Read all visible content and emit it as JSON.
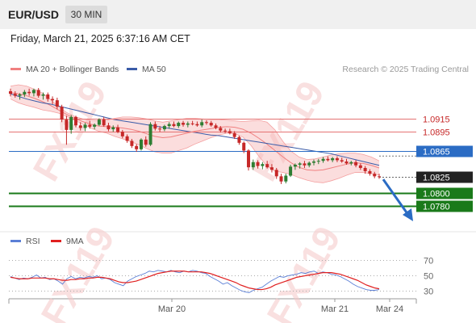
{
  "header": {
    "symbol": "EUR/USD",
    "interval": "30 MIN",
    "timestamp": "Friday, March 21, 2025 6:37:16 AM CET"
  },
  "legend": {
    "bollinger_label": "MA 20 + Bollinger Bands",
    "ma50_label": "MA 50",
    "credit": "Research © 2025 Trading Central"
  },
  "rsi_legend": {
    "rsi_label": "RSI",
    "ma_label": "9MA"
  },
  "watermark": "FX119",
  "colors": {
    "bollinger": "#f08080",
    "ma50": "#3a5ba8",
    "bull": "#2e7d32",
    "bear": "#c62828",
    "support": "#1a7a1a",
    "resistance": "#e57373",
    "pivot": "#2b6cc4",
    "rsi": "#5b7fd6",
    "rsi_ma": "#e02020"
  },
  "chart_data": [
    {
      "type": "candlestick",
      "title": "EUR/USD 30 MIN",
      "ylim": [
        1.0745,
        1.0968
      ],
      "x_ticks": [
        "Mar 20",
        "Mar 21",
        "Mar 24"
      ],
      "levels": [
        {
          "label": "1.0915",
          "value": 1.0915,
          "kind": "resistance"
        },
        {
          "label": "1.0895",
          "value": 1.0895,
          "kind": "resistance"
        },
        {
          "label": "1.0865",
          "value": 1.0865,
          "kind": "pivot"
        },
        {
          "label": "1.0825",
          "value": 1.0825,
          "kind": "last"
        },
        {
          "label": "1.0800",
          "value": 1.08,
          "kind": "support"
        },
        {
          "label": "1.0780",
          "value": 1.078,
          "kind": "support"
        }
      ],
      "candles": [
        [
          1.0958,
          1.0962,
          1.095,
          1.0954
        ],
        [
          1.0954,
          1.0958,
          1.0948,
          1.0951
        ],
        [
          1.0951,
          1.0955,
          1.0945,
          1.0953
        ],
        [
          1.0953,
          1.096,
          1.0949,
          1.0957
        ],
        [
          1.0957,
          1.0962,
          1.0951,
          1.0955
        ],
        [
          1.0955,
          1.0962,
          1.095,
          1.096
        ],
        [
          1.096,
          1.0963,
          1.0948,
          1.0951
        ],
        [
          1.0951,
          1.0956,
          1.0945,
          1.0953
        ],
        [
          1.0953,
          1.0956,
          1.0942,
          1.0946
        ],
        [
          1.0946,
          1.095,
          1.0938,
          1.0944
        ],
        [
          1.0944,
          1.0948,
          1.093,
          1.0934
        ],
        [
          1.0934,
          1.0937,
          1.091,
          1.0914
        ],
        [
          1.0914,
          1.092,
          1.0875,
          1.0898
        ],
        [
          1.0898,
          1.0921,
          1.0892,
          1.0918
        ],
        [
          1.0918,
          1.092,
          1.0902,
          1.0905
        ],
        [
          1.0905,
          1.091,
          1.0897,
          1.0901
        ],
        [
          1.0901,
          1.0909,
          1.0896,
          1.0906
        ],
        [
          1.0906,
          1.0912,
          1.09,
          1.0903
        ],
        [
          1.0903,
          1.0908,
          1.0899,
          1.0906
        ],
        [
          1.0906,
          1.0916,
          1.0904,
          1.0914
        ],
        [
          1.0914,
          1.0918,
          1.0903,
          1.0905
        ],
        [
          1.0905,
          1.0909,
          1.0896,
          1.0899
        ],
        [
          1.0899,
          1.0905,
          1.0895,
          1.0902
        ],
        [
          1.0902,
          1.0906,
          1.0893,
          1.0895
        ],
        [
          1.0895,
          1.0898,
          1.0885,
          1.0888
        ],
        [
          1.0888,
          1.0891,
          1.0878,
          1.0881
        ],
        [
          1.0881,
          1.0884,
          1.087,
          1.0873
        ],
        [
          1.0873,
          1.0876,
          1.0864,
          1.0868
        ],
        [
          1.0868,
          1.0885,
          1.0866,
          1.0883
        ],
        [
          1.0883,
          1.0888,
          1.0872,
          1.0875
        ],
        [
          1.0875,
          1.091,
          1.0873,
          1.0907
        ],
        [
          1.0907,
          1.0911,
          1.0897,
          1.09
        ],
        [
          1.09,
          1.0904,
          1.0895,
          1.0899
        ],
        [
          1.0899,
          1.0906,
          1.0896,
          1.0904
        ],
        [
          1.0904,
          1.091,
          1.09,
          1.0907
        ],
        [
          1.0907,
          1.0911,
          1.0902,
          1.0904
        ],
        [
          1.0904,
          1.0911,
          1.0901,
          1.0909
        ],
        [
          1.0909,
          1.0912,
          1.0903,
          1.0906
        ],
        [
          1.0906,
          1.0911,
          1.0902,
          1.0908
        ],
        [
          1.0908,
          1.0912,
          1.0905,
          1.0907
        ],
        [
          1.0907,
          1.0911,
          1.0903,
          1.0905
        ],
        [
          1.0905,
          1.0914,
          1.0902,
          1.091
        ],
        [
          1.091,
          1.0913,
          1.0906,
          1.0909
        ],
        [
          1.0909,
          1.0912,
          1.0903,
          1.0905
        ],
        [
          1.0905,
          1.0908,
          1.0899,
          1.0901
        ],
        [
          1.0901,
          1.0904,
          1.0894,
          1.0897
        ],
        [
          1.0897,
          1.09,
          1.0893,
          1.0896
        ],
        [
          1.0896,
          1.09,
          1.0891,
          1.0893
        ],
        [
          1.0893,
          1.0896,
          1.0884,
          1.0887
        ],
        [
          1.0887,
          1.0889,
          1.0875,
          1.0878
        ],
        [
          1.0878,
          1.088,
          1.0862,
          1.0866
        ],
        [
          1.0866,
          1.0868,
          1.0835,
          1.084
        ],
        [
          1.084,
          1.0852,
          1.0836,
          1.0848
        ],
        [
          1.0848,
          1.0851,
          1.0838,
          1.0842
        ],
        [
          1.0842,
          1.0848,
          1.0837,
          1.0845
        ],
        [
          1.0845,
          1.085,
          1.0838,
          1.084
        ],
        [
          1.084,
          1.0845,
          1.0832,
          1.0836
        ],
        [
          1.0836,
          1.0839,
          1.0822,
          1.0826
        ],
        [
          1.0826,
          1.083,
          1.0814,
          1.0818
        ],
        [
          1.0818,
          1.083,
          1.0815,
          1.0827
        ],
        [
          1.0827,
          1.0844,
          1.0825,
          1.0841
        ],
        [
          1.0841,
          1.0846,
          1.0836,
          1.0844
        ],
        [
          1.0844,
          1.0848,
          1.0838,
          1.0846
        ],
        [
          1.0846,
          1.085,
          1.0839,
          1.0843
        ],
        [
          1.0843,
          1.0849,
          1.084,
          1.0847
        ],
        [
          1.0847,
          1.0852,
          1.0843,
          1.0849
        ],
        [
          1.0849,
          1.0853,
          1.0845,
          1.085
        ],
        [
          1.085,
          1.0856,
          1.0847,
          1.0853
        ],
        [
          1.0853,
          1.0857,
          1.0849,
          1.0851
        ],
        [
          1.0851,
          1.0856,
          1.0848,
          1.0854
        ],
        [
          1.0854,
          1.0857,
          1.0848,
          1.0851
        ],
        [
          1.0851,
          1.0855,
          1.0847,
          1.0849
        ],
        [
          1.0849,
          1.0853,
          1.0844,
          1.0846
        ],
        [
          1.0846,
          1.085,
          1.0843,
          1.0848
        ],
        [
          1.0848,
          1.0851,
          1.084,
          1.0843
        ],
        [
          1.0843,
          1.0846,
          1.0836,
          1.0839
        ],
        [
          1.0839,
          1.0842,
          1.083,
          1.0834
        ],
        [
          1.0834,
          1.0837,
          1.0827,
          1.083
        ],
        [
          1.083,
          1.0833,
          1.0823,
          1.0826
        ],
        [
          1.0826,
          1.083,
          1.0822,
          1.0825
        ]
      ],
      "bollinger_mid": [
        1.0956,
        1.0954,
        1.0951,
        1.0947,
        1.0942,
        1.0936,
        1.0929,
        1.0922,
        1.0916,
        1.0911,
        1.0907,
        1.0904,
        1.0903,
        1.0902,
        1.0901,
        1.0899,
        1.0896,
        1.0892,
        1.0888,
        1.0886,
        1.0887,
        1.089,
        1.0893,
        1.0896,
        1.0898,
        1.09,
        1.0902,
        1.0903,
        1.0902,
        1.0899,
        1.0893,
        1.0885,
        1.0876,
        1.0866,
        1.0856,
        1.0847,
        1.084,
        1.0836,
        1.0835,
        1.0836,
        1.0839,
        1.0842,
        1.0845,
        1.0847,
        1.0846,
        1.0843,
        1.0839
      ],
      "bollinger_upper": [
        1.0966,
        1.0968,
        1.0966,
        1.0961,
        1.0955,
        1.0945,
        1.0934,
        1.0925,
        1.0919,
        1.0915,
        1.0913,
        1.0912,
        1.0913,
        1.0916,
        1.0918,
        1.0918,
        1.0917,
        1.0915,
        1.0912,
        1.091,
        1.0912,
        1.0914,
        1.0916,
        1.0916,
        1.0915,
        1.0914,
        1.0914,
        1.0913,
        1.0912,
        1.0911,
        1.0912,
        1.0913,
        1.091,
        1.0898,
        1.088,
        1.0865,
        1.0856,
        1.0852,
        1.0853,
        1.0856,
        1.0859,
        1.0861,
        1.0862,
        1.0862,
        1.086,
        1.0856,
        1.085
      ],
      "bollinger_lower": [
        1.0946,
        1.094,
        1.0936,
        1.0933,
        1.0929,
        1.0927,
        1.0924,
        1.0919,
        1.0913,
        1.0907,
        1.0901,
        1.0896,
        1.0893,
        1.0888,
        1.0884,
        1.088,
        1.0875,
        1.0869,
        1.0864,
        1.0862,
        1.0862,
        1.0866,
        1.087,
        1.0876,
        1.0881,
        1.0886,
        1.089,
        1.0893,
        1.0892,
        1.0887,
        1.0874,
        1.0857,
        1.0842,
        1.0834,
        1.0832,
        1.0829,
        1.0824,
        1.082,
        1.0817,
        1.0816,
        1.0819,
        1.0823,
        1.0828,
        1.0832,
        1.0832,
        1.083,
        1.0828
      ],
      "ma50": [
        1.0954,
        1.095,
        1.0946,
        1.0943,
        1.094,
        1.0938,
        1.0935,
        1.0932,
        1.0929,
        1.0926,
        1.0923,
        1.092,
        1.0917,
        1.0914,
        1.0912,
        1.091,
        1.0908,
        1.0906,
        1.0904,
        1.0902,
        1.09,
        1.0898,
        1.0896,
        1.0894,
        1.0892,
        1.089,
        1.0889,
        1.0887,
        1.0885,
        1.0883,
        1.0881,
        1.0879,
        1.0877,
        1.0875,
        1.0873,
        1.0871,
        1.0869,
        1.0867,
        1.0865,
        1.0863,
        1.0861,
        1.0858,
        1.0855,
        1.0852,
        1.0849,
        1.0846,
        1.0843
      ]
    },
    {
      "type": "line",
      "title": "RSI",
      "ylim": [
        20,
        80
      ],
      "y_ticks": [
        70,
        50,
        30
      ],
      "series": [
        {
          "name": "RSI",
          "values": [
            48,
            46,
            44,
            46,
            45,
            47,
            50,
            46,
            47,
            44,
            45,
            42,
            38,
            45,
            48,
            45,
            47,
            46,
            48,
            47,
            49,
            45,
            46,
            44,
            40,
            38,
            36,
            42,
            45,
            48,
            50,
            52,
            55,
            54,
            56,
            55,
            54,
            56,
            54,
            53,
            55,
            54,
            56,
            55,
            53,
            52,
            48,
            45,
            42,
            38,
            40,
            36,
            33,
            30,
            28,
            27,
            30,
            32,
            34,
            38,
            42,
            45,
            48,
            47,
            49,
            50,
            51,
            53,
            52,
            54,
            55,
            52,
            54,
            53,
            51,
            50,
            48,
            45,
            42,
            38,
            35,
            33,
            31,
            30,
            30,
            31
          ]
        },
        {
          "name": "9MA",
          "values": [
            47,
            46,
            45,
            45,
            45,
            46,
            46,
            46,
            46,
            45,
            45,
            44,
            43,
            43,
            44,
            44,
            45,
            45,
            46,
            46,
            47,
            47,
            46,
            45,
            43,
            41,
            40,
            40,
            41,
            42,
            44,
            46,
            48,
            50,
            52,
            53,
            54,
            55,
            55,
            55,
            55,
            54,
            54,
            54,
            54,
            53,
            52,
            50,
            48,
            46,
            44,
            42,
            40,
            37,
            35,
            33,
            32,
            31,
            31,
            32,
            34,
            37,
            39,
            41,
            43,
            45,
            47,
            48,
            49,
            50,
            51,
            52,
            53,
            53,
            53,
            52,
            51,
            49,
            47,
            45,
            43,
            40,
            37,
            35,
            33,
            32
          ]
        }
      ]
    }
  ]
}
